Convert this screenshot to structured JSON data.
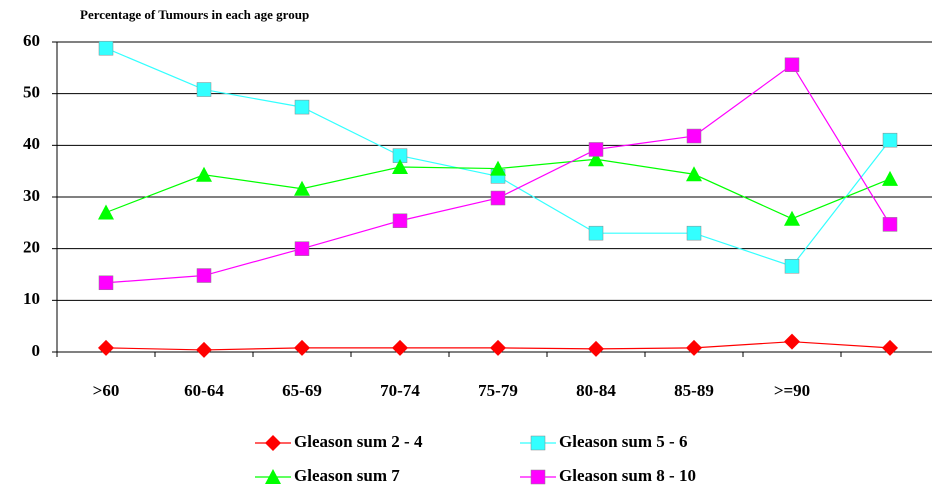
{
  "chart_data": {
    "type": "line",
    "title": "Percentage of Tumours in each age group",
    "categories": [
      ">60",
      "60-64",
      "65-69",
      "70-74",
      "75-79",
      "80-84",
      "85-89",
      ">=90",
      null
    ],
    "series": [
      {
        "name": "Gleason sum 2 - 4",
        "color": "#ff0000",
        "marker": "diamond",
        "values": [
          0.8,
          0.4,
          0.8,
          0.8,
          0.8,
          0.6,
          0.8,
          2,
          0.8
        ]
      },
      {
        "name": "Gleason sum 5 - 6",
        "color": "#33ffff",
        "marker": "square",
        "values": [
          58.8,
          50.8,
          47.4,
          38,
          34,
          23,
          23,
          16.6,
          41
        ]
      },
      {
        "name": "Gleason sum 7",
        "color": "#00ff00",
        "marker": "triangle",
        "values": [
          27,
          34.3,
          31.6,
          35.8,
          35.5,
          37.3,
          34.4,
          25.8,
          33.5
        ]
      },
      {
        "name": "Gleason sum 8 - 10",
        "color": "#ff00ff",
        "marker": "square",
        "values": [
          13.4,
          14.8,
          20,
          25.4,
          29.8,
          39.2,
          41.8,
          55.6,
          24.7
        ]
      }
    ],
    "ylim": [
      0,
      60
    ],
    "yticks": [
      0,
      10,
      20,
      30,
      40,
      50,
      60
    ],
    "grid": true
  }
}
